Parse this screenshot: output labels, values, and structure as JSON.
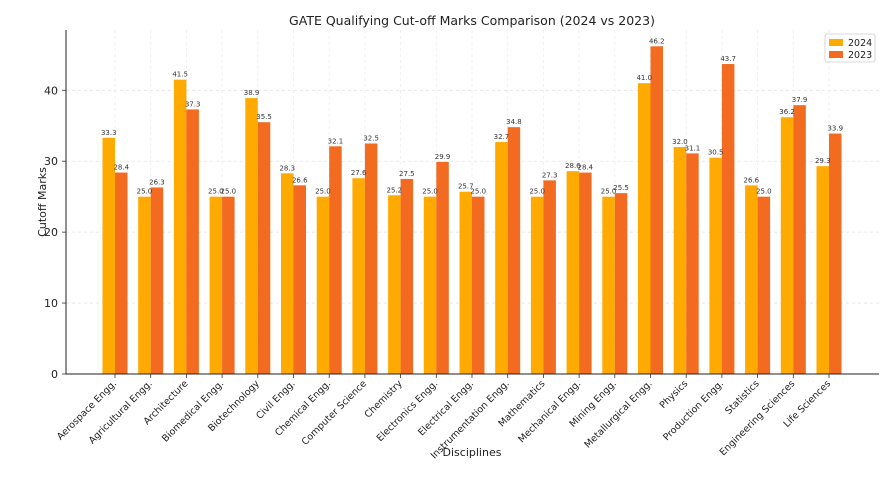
{
  "chart_data": {
    "type": "bar",
    "title": "GATE Qualifying Cut-off Marks Comparison (2024 vs 2023)",
    "xlabel": "Disciplines",
    "ylabel": "Cutoff Marks",
    "ylim": [
      0,
      48.5
    ],
    "yticks": [
      0,
      10,
      20,
      30,
      40
    ],
    "grid": true,
    "legend_position": "top-right",
    "categories": [
      "Aerospace Engg.",
      "Agricultural Engg.",
      "Architecture",
      "Biomedical Engg.",
      "Biotechnology",
      "Civil Engg.",
      "Chemical Engg.",
      "Computer Science",
      "Chemistry",
      "Electronics Engg.",
      "Electrical Engg.",
      "Instrumentation Engg.",
      "Mathematics",
      "Mechanical Engg.",
      "Mining Engg.",
      "Metallurgical Engg.",
      "Physics",
      "Production Engg.",
      "Statistics",
      "Engineering Sciences",
      "Life Sciences"
    ],
    "series": [
      {
        "name": "2024",
        "color": "#FFAA00",
        "values": [
          33.3,
          25.0,
          41.5,
          25.0,
          38.9,
          28.3,
          25.0,
          27.6,
          25.2,
          25.0,
          25.7,
          32.7,
          25.0,
          28.6,
          25.0,
          41.0,
          32.0,
          30.5,
          26.6,
          36.2,
          29.3
        ]
      },
      {
        "name": "2023",
        "color": "#F26B21",
        "values": [
          28.4,
          26.3,
          37.3,
          25.0,
          35.5,
          26.6,
          32.1,
          32.5,
          27.5,
          29.9,
          25.0,
          34.8,
          27.3,
          28.4,
          25.5,
          46.2,
          31.1,
          43.7,
          25.0,
          37.9,
          33.9
        ]
      }
    ]
  }
}
